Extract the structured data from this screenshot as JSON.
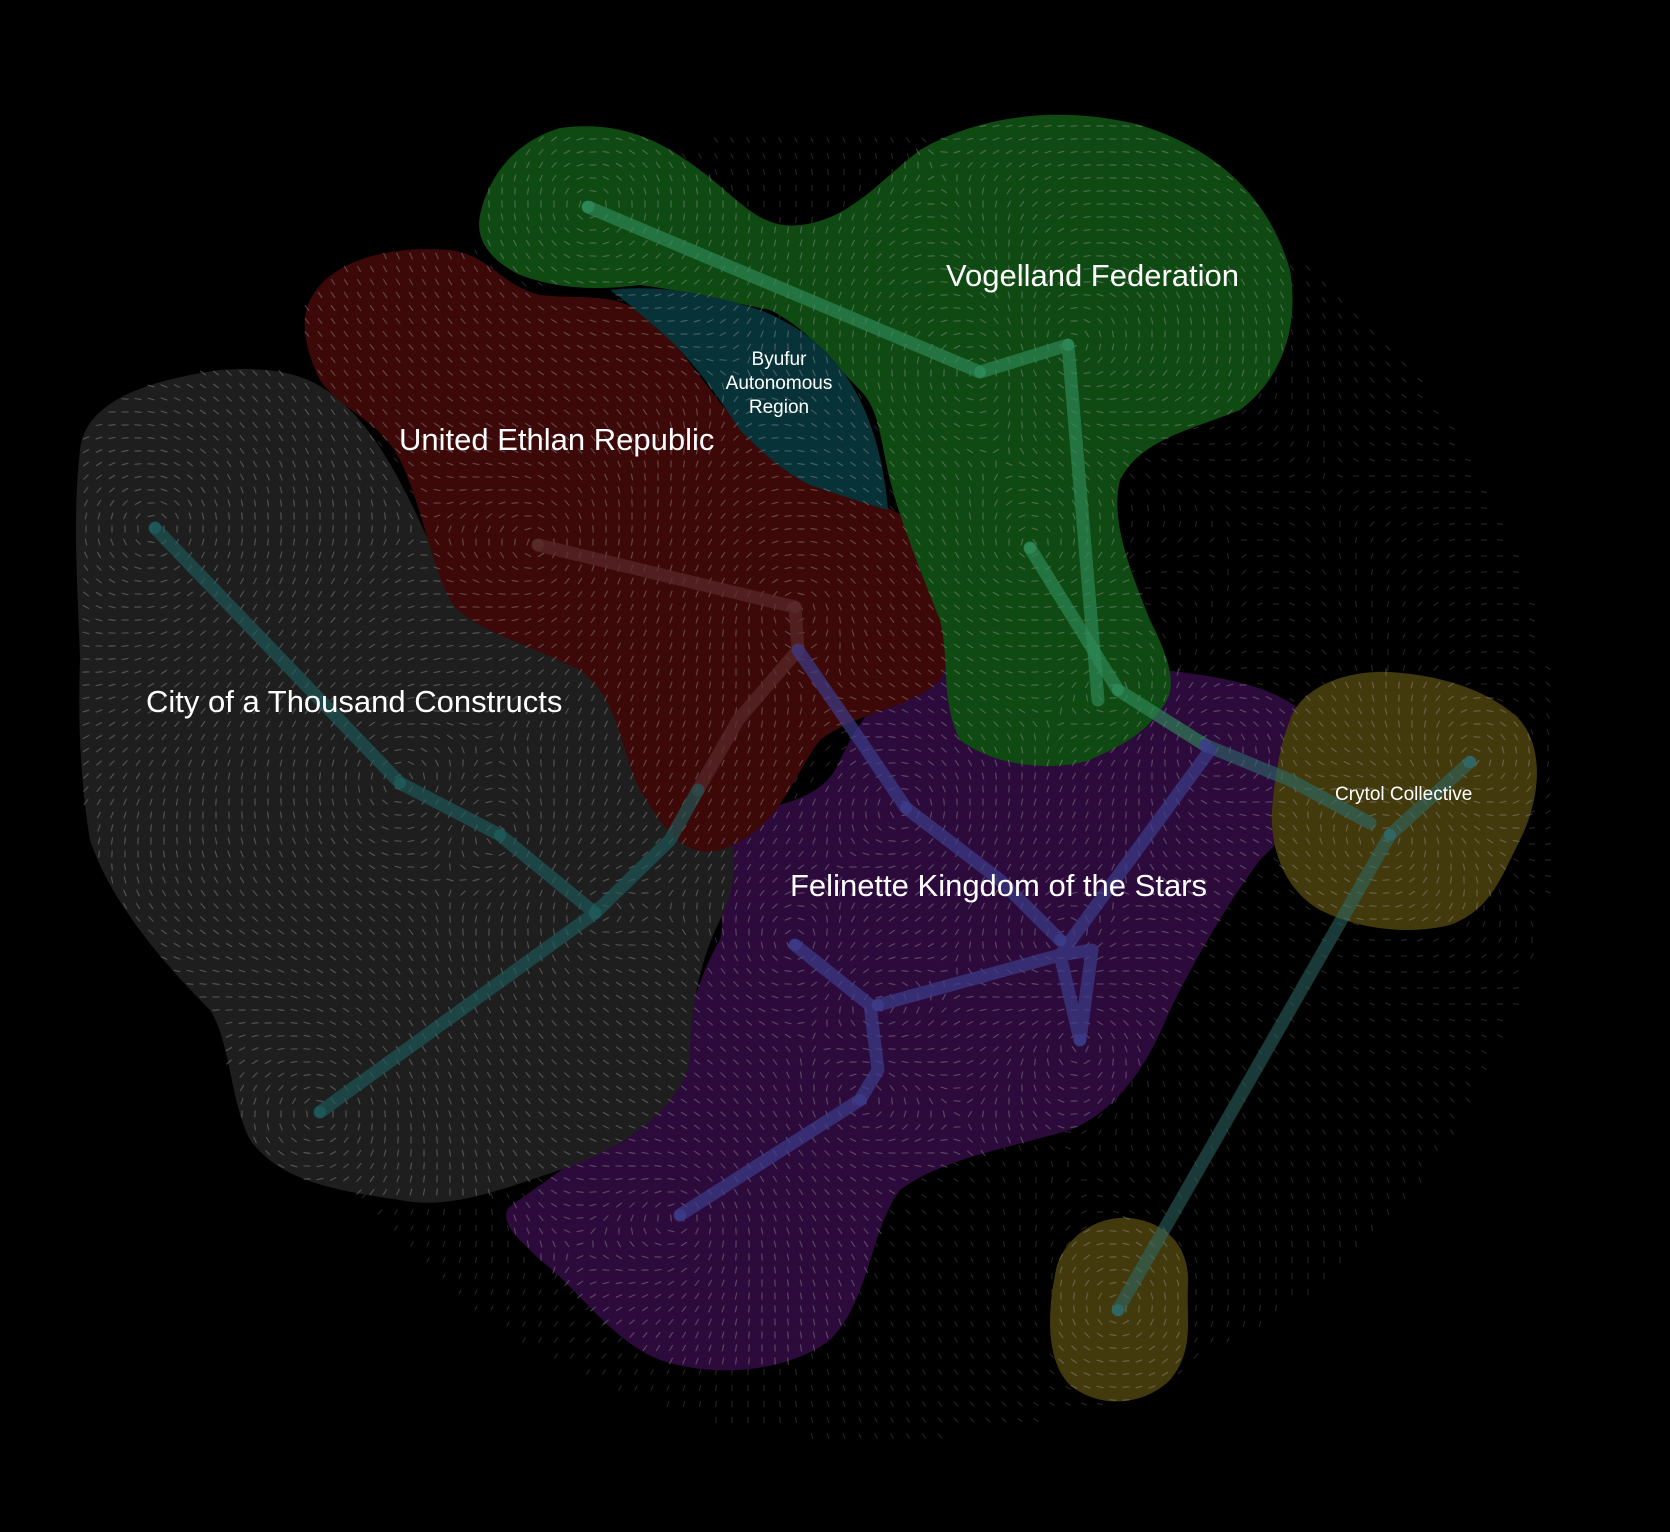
{
  "map": {
    "background": "#000000",
    "regions": [
      {
        "id": "vogelland",
        "label": "Vogelland Federation",
        "color": "#0f4a12",
        "lane_color": "#2f8a5a"
      },
      {
        "id": "ethlan",
        "label": "United Ethlan Republic",
        "color": "#3d0808",
        "lane_color": "#5a2a2a"
      },
      {
        "id": "byufur",
        "label_lines": [
          "Byufur",
          "Autonomous",
          "Region"
        ],
        "color": "#073238"
      },
      {
        "id": "thousand-constructs",
        "label": "City of a Thousand Constructs",
        "color": "#1e1e1e",
        "lane_color": "#1f5a5a"
      },
      {
        "id": "felinette",
        "label": "Felinette Kingdom of the Stars",
        "color": "#2c0a3c",
        "lane_color": "#3c3c8a"
      },
      {
        "id": "crytol",
        "label": "Crytol Collective",
        "color": "#423a0c",
        "lane_color": "#2f6a6a"
      }
    ],
    "field_arrow_color": "#9a9a9a"
  }
}
